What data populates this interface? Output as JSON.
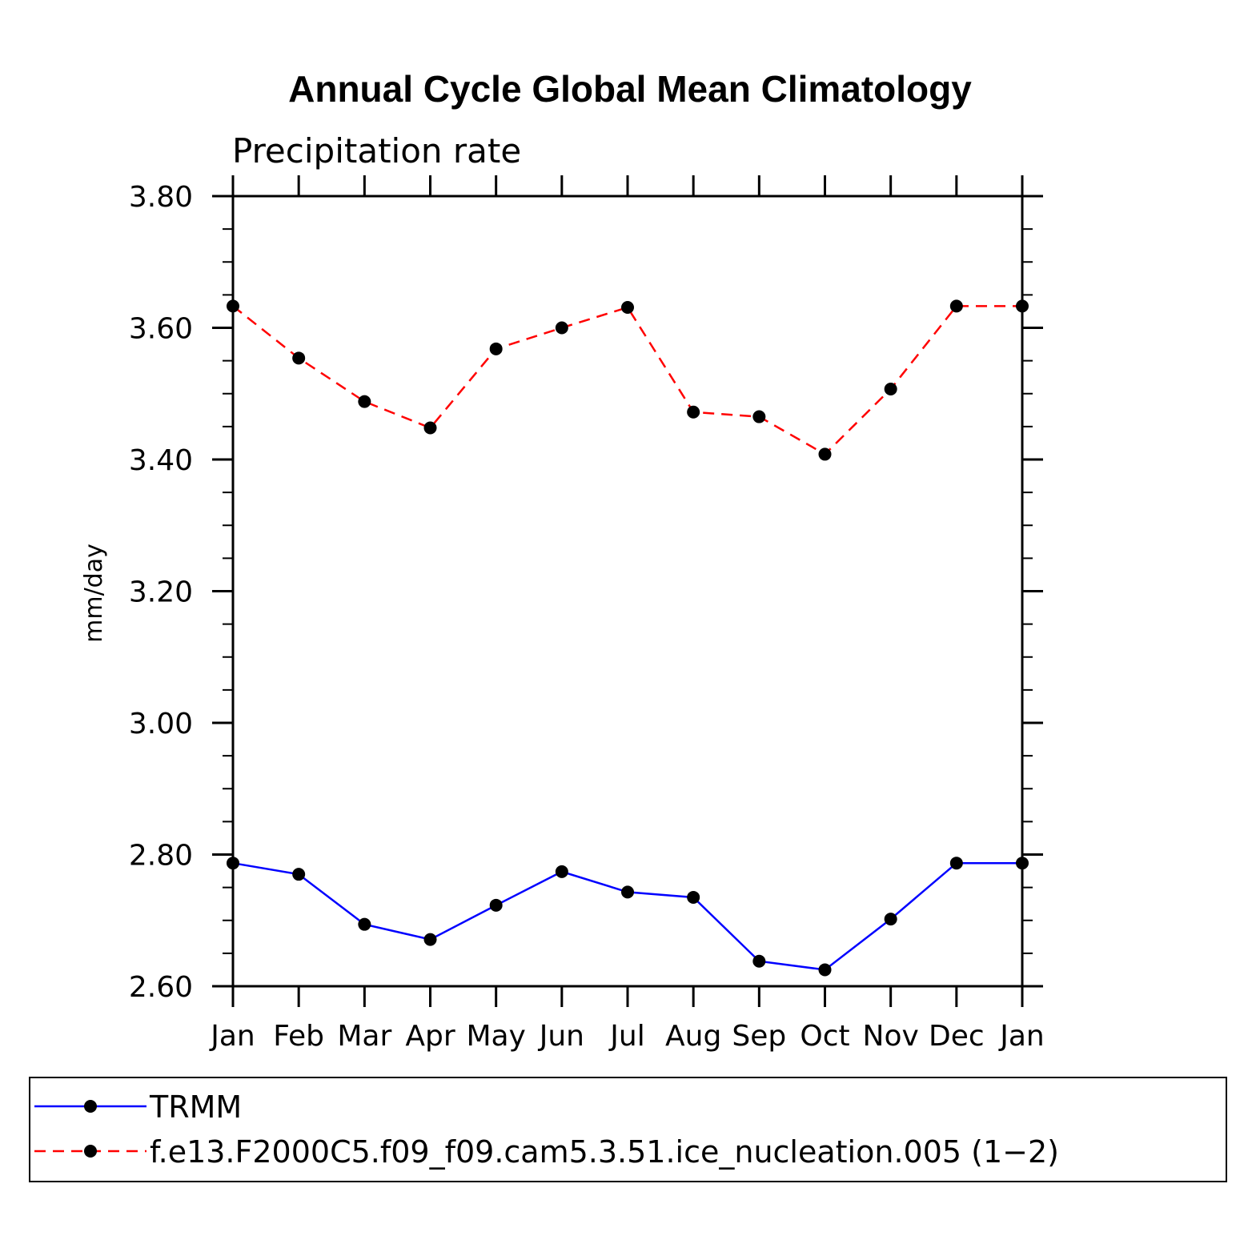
{
  "chart_data": {
    "type": "line",
    "title": "Annual Cycle Global Mean Climatology",
    "subtitle": "Precipitation rate",
    "xlabel": "",
    "ylabel": "mm/day",
    "categories": [
      "Jan",
      "Feb",
      "Mar",
      "Apr",
      "May",
      "Jun",
      "Jul",
      "Aug",
      "Sep",
      "Oct",
      "Nov",
      "Dec",
      "Jan"
    ],
    "ylim": [
      2.6,
      3.8
    ],
    "yticks": [
      "2.60",
      "2.80",
      "3.00",
      "3.20",
      "3.40",
      "3.60",
      "3.80"
    ],
    "ytick_values": [
      2.6,
      2.8,
      3.0,
      3.2,
      3.4,
      3.6,
      3.8
    ],
    "grid": false,
    "legend_position": "bottom",
    "series": [
      {
        "name": "TRMM",
        "color": "#0000ff",
        "line_style": "solid",
        "marker": "filled-circle",
        "values": [
          2.787,
          2.77,
          2.694,
          2.671,
          2.723,
          2.774,
          2.743,
          2.735,
          2.638,
          2.625,
          2.702,
          2.787,
          2.787
        ]
      },
      {
        "name": "f.e13.F2000C5.f09_f09.cam5.3.51.ice_nucleation.005 (1−2)",
        "color": "#ff0000",
        "line_style": "dashed",
        "marker": "filled-circle",
        "values": [
          3.633,
          3.554,
          3.488,
          3.448,
          3.568,
          3.6,
          3.631,
          3.472,
          3.465,
          3.408,
          3.507,
          3.633,
          3.633
        ]
      }
    ]
  }
}
